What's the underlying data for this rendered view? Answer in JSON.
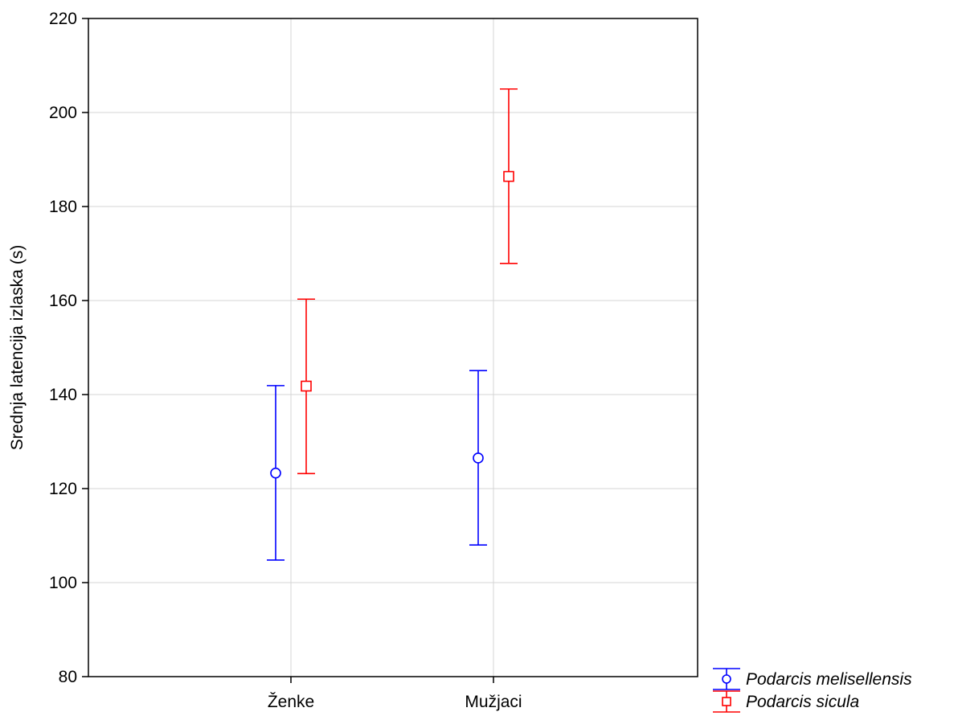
{
  "chart_data": {
    "type": "scatter",
    "title": "",
    "xlabel": "",
    "ylabel": "Srednja latencija izlaska (s)",
    "categories": [
      "Ženke",
      "Mužjaci"
    ],
    "ylim": [
      80,
      220
    ],
    "yticks": [
      80,
      100,
      120,
      140,
      160,
      180,
      200,
      220
    ],
    "grid": true,
    "legend_position": "bottom-right outside",
    "series": [
      {
        "name": "Podarcis melisellensis",
        "color": "#0000ff",
        "marker": "circle",
        "values": [
          123.3,
          126.5
        ],
        "lower": [
          104.8,
          108.0
        ],
        "upper": [
          141.9,
          145.1
        ]
      },
      {
        "name": "Podarcis sicula",
        "color": "#ff0000",
        "marker": "square",
        "values": [
          141.8,
          186.4
        ],
        "lower": [
          123.2,
          167.9
        ],
        "upper": [
          160.3,
          205.0
        ]
      }
    ]
  }
}
